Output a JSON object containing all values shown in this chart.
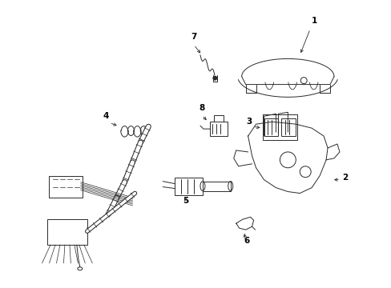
{
  "background_color": "#ffffff",
  "line_color": "#2a2a2a",
  "label_color": "#000000",
  "figsize": [
    4.89,
    3.6
  ],
  "dpi": 100,
  "lw": 0.7
}
